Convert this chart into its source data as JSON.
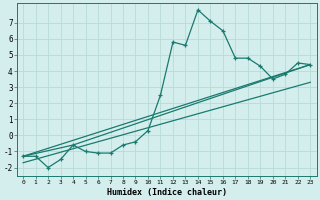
{
  "xlabel": "Humidex (Indice chaleur)",
  "ylabel": "",
  "background_color": "#d4eeed",
  "line_color": "#1a7a6e",
  "grid_color": "#b8dbd8",
  "xlim": [
    -0.5,
    23.5
  ],
  "ylim": [
    -2.5,
    8.2
  ],
  "xticks": [
    0,
    1,
    2,
    3,
    4,
    5,
    6,
    7,
    8,
    9,
    10,
    11,
    12,
    13,
    14,
    15,
    16,
    17,
    18,
    19,
    20,
    21,
    22,
    23
  ],
  "yticks": [
    -2,
    -1,
    0,
    1,
    2,
    3,
    4,
    5,
    6,
    7
  ],
  "main_x": [
    0,
    1,
    2,
    3,
    4,
    5,
    6,
    7,
    8,
    9,
    10,
    11,
    12,
    13,
    14,
    15,
    16,
    17,
    18,
    19,
    20,
    21,
    22,
    23
  ],
  "main_y": [
    -1.3,
    -1.3,
    -2.0,
    -1.5,
    -0.6,
    -1.0,
    -1.1,
    -1.1,
    -0.6,
    -0.4,
    0.3,
    2.5,
    5.8,
    5.6,
    7.8,
    7.1,
    6.5,
    4.8,
    4.8,
    4.3,
    3.5,
    3.8,
    4.5,
    4.4
  ],
  "trend1_x": [
    0,
    23
  ],
  "trend1_y": [
    -1.3,
    4.4
  ],
  "trend2_x": [
    0,
    23
  ],
  "trend2_y": [
    -1.7,
    3.3
  ],
  "trend3_x": [
    0,
    4,
    23
  ],
  "trend3_y": [
    -1.3,
    -0.6,
    4.4
  ]
}
